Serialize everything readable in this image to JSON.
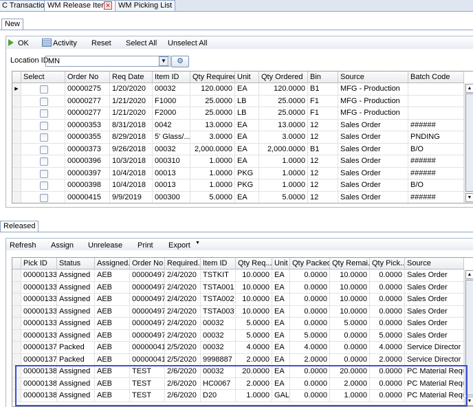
{
  "tabs": [
    "C Transactions",
    "WM Release Items",
    "WM Picking List"
  ],
  "new_section": {
    "tab": "New",
    "toolbar": [
      "OK",
      "Activity",
      "Reset",
      "Select All",
      "Unselect All"
    ],
    "location_label": "Location ID",
    "location_value": "MN",
    "table": {
      "headers": [
        "Select",
        "Order No",
        "Req Date",
        "Item ID",
        "Qty Required",
        "Unit",
        "Qty Ordered",
        "Bin",
        "Source",
        "Batch Code"
      ],
      "rows": [
        [
          "00000275",
          "1/20/2020",
          "00032",
          "120.0000",
          "EA",
          "120.0000",
          "B1",
          "MFG - Production"
        ],
        [
          "00000277",
          "1/21/2020",
          "F1000",
          "25.0000",
          "LB",
          "25.0000",
          "F1",
          "MFG - Production"
        ],
        [
          "00000277",
          "1/21/2020",
          "F2000",
          "25.0000",
          "LB",
          "25.0000",
          "F1",
          "MFG - Production"
        ],
        [
          "00000353",
          "8/31/2018",
          "0042",
          "13.0000",
          "EA",
          "13.0000",
          "12",
          "Sales Order",
          "######"
        ],
        [
          "00000355",
          "8/29/2018",
          "5' Glass/...",
          "3.0000",
          "EA",
          "3.0000",
          "12",
          "Sales Order",
          "PNDING"
        ],
        [
          "00000373",
          "9/26/2018",
          "00032",
          "2,000.0000",
          "EA",
          "2,000.0000",
          "B1",
          "Sales Order",
          "B/O"
        ],
        [
          "00000396",
          "10/3/2018",
          "000310",
          "1.0000",
          "EA",
          "1.0000",
          "12",
          "Sales Order",
          "######"
        ],
        [
          "00000397",
          "10/4/2018",
          "00013",
          "1.0000",
          "PKG",
          "1.0000",
          "12",
          "Sales Order",
          "######"
        ],
        [
          "00000398",
          "10/4/2018",
          "00013",
          "1.0000",
          "PKG",
          "1.0000",
          "12",
          "Sales Order",
          "B/O"
        ],
        [
          "00000415",
          "9/9/2019",
          "000300",
          "5.0000",
          "EA",
          "5.0000",
          "12",
          "Sales Order",
          "######"
        ]
      ]
    }
  },
  "released_section": {
    "tab": "Released",
    "toolbar": [
      "Refresh",
      "Assign",
      "Unrelease",
      "Print",
      "Export"
    ],
    "table": {
      "headers": [
        "Pick ID",
        "Status",
        "Assigned...",
        "Order No",
        "Required...",
        "Item ID",
        "Qty Req...",
        "Unit",
        "Qty Packed",
        "Qty Remai...",
        "Qty Pick...",
        "Source"
      ],
      "rows": [
        [
          "00000133",
          "Assigned",
          "AEB",
          "00000497",
          "2/4/2020",
          "TSTKIT",
          "10.0000",
          "EA",
          "0.0000",
          "10.0000",
          "0.0000",
          "Sales Order"
        ],
        [
          "00000133",
          "Assigned",
          "AEB",
          "00000497",
          "2/4/2020",
          "TSTA001",
          "10.0000",
          "EA",
          "0.0000",
          "10.0000",
          "0.0000",
          "Sales Order"
        ],
        [
          "00000133",
          "Assigned",
          "AEB",
          "00000497",
          "2/4/2020",
          "TSTA002",
          "10.0000",
          "EA",
          "0.0000",
          "10.0000",
          "0.0000",
          "Sales Order"
        ],
        [
          "00000133",
          "Assigned",
          "AEB",
          "00000497",
          "2/4/2020",
          "TSTA003",
          "10.0000",
          "EA",
          "0.0000",
          "10.0000",
          "0.0000",
          "Sales Order"
        ],
        [
          "00000133",
          "Assigned",
          "AEB",
          "00000497",
          "2/4/2020",
          "00032",
          "5.0000",
          "EA",
          "0.0000",
          "5.0000",
          "0.0000",
          "Sales Order"
        ],
        [
          "00000133",
          "Assigned",
          "AEB",
          "00000497",
          "2/4/2020",
          "00032",
          "5.0000",
          "EA",
          "5.0000",
          "0.0000",
          "5.0000",
          "Sales Order"
        ],
        [
          "00000137",
          "Packed",
          "AEB",
          "00000041",
          "2/5/2020",
          "00032",
          "4.0000",
          "EA",
          "4.0000",
          "0.0000",
          "4.0000",
          "Service Director"
        ],
        [
          "00000137",
          "Packed",
          "AEB",
          "00000041",
          "2/5/2020",
          "9998887",
          "2.0000",
          "EA",
          "2.0000",
          "0.0000",
          "2.0000",
          "Service Director"
        ],
        [
          "00000138",
          "Assigned",
          "AEB",
          "TEST",
          "2/6/2020",
          "00032",
          "20.0000",
          "EA",
          "0.0000",
          "20.0000",
          "0.0000",
          "PC Material Requ..."
        ],
        [
          "00000138",
          "Assigned",
          "AEB",
          "TEST",
          "2/6/2020",
          "HC0067",
          "2.0000",
          "EA",
          "0.0000",
          "2.0000",
          "0.0000",
          "PC Material Requ..."
        ],
        [
          "00000138",
          "Assigned",
          "AEB",
          "TEST",
          "2/6/2020",
          "D20",
          "1.0000",
          "GAL",
          "0.0000",
          "1.0000",
          "0.0000",
          "PC Material Requ..."
        ]
      ]
    }
  }
}
